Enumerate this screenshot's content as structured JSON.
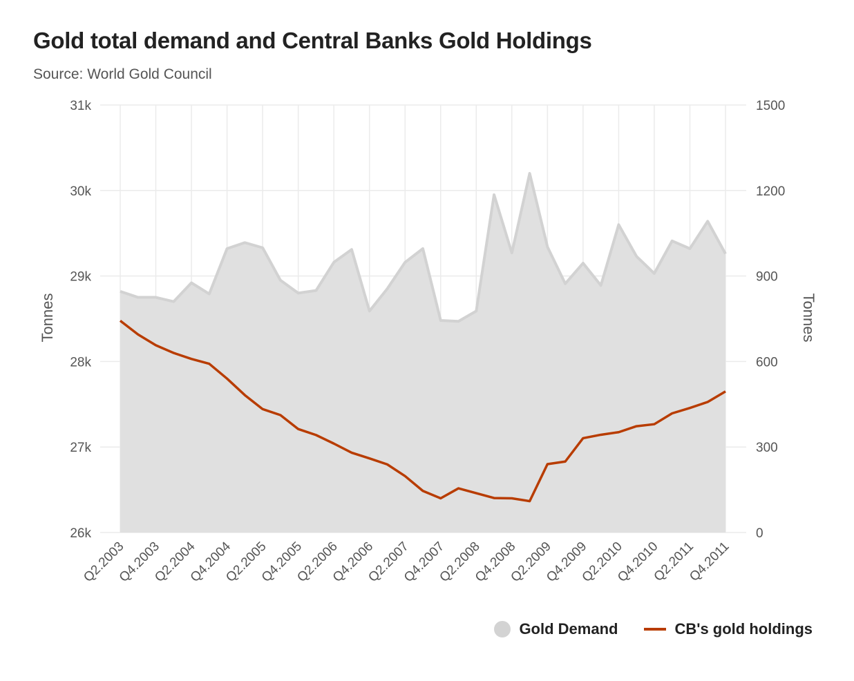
{
  "header": {
    "title": "Gold total demand and Central Banks Gold Holdings",
    "subtitle": "Source: World Gold Council"
  },
  "legend": {
    "demand_label": "Gold Demand",
    "holdings_label": "CB's gold holdings"
  },
  "colors": {
    "demand_fill": "#e0e0e0",
    "demand_stroke": "#d2d2d2",
    "holdings_line": "#b83c00",
    "grid": "#ebebeb"
  },
  "chart_data": {
    "type": "line",
    "title": "Gold total demand and Central Banks Gold Holdings",
    "subtitle": "Source: World Gold Council",
    "x": [
      "Q2.2003",
      "Q3.2003",
      "Q4.2003",
      "Q1.2004",
      "Q2.2004",
      "Q3.2004",
      "Q4.2004",
      "Q1.2005",
      "Q2.2005",
      "Q3.2005",
      "Q4.2005",
      "Q1.2006",
      "Q2.2006",
      "Q3.2006",
      "Q4.2006",
      "Q1.2007",
      "Q2.2007",
      "Q3.2007",
      "Q4.2007",
      "Q1.2008",
      "Q2.2008",
      "Q3.2008",
      "Q4.2008",
      "Q1.2009",
      "Q2.2009",
      "Q3.2009",
      "Q4.2009",
      "Q1.2010",
      "Q2.2010",
      "Q3.2010",
      "Q4.2010",
      "Q1.2011",
      "Q2.2011",
      "Q3.2011",
      "Q4.2011"
    ],
    "x_tick_labels": [
      "Q2.2003",
      "Q4.2003",
      "Q2.2004",
      "Q4.2004",
      "Q2.2005",
      "Q4.2005",
      "Q2.2006",
      "Q4.2006",
      "Q2.2007",
      "Q4.2007",
      "Q2.2008",
      "Q4.2008",
      "Q2.2009",
      "Q4.2009",
      "Q2.2010",
      "Q4.2010",
      "Q2.2011",
      "Q4.2011"
    ],
    "y_left": {
      "label": "Tonnes",
      "range": [
        26000,
        31000
      ],
      "ticks": [
        26000,
        27000,
        28000,
        29000,
        30000,
        31000
      ],
      "tick_labels": [
        "26k",
        "27k",
        "28k",
        "29k",
        "30k",
        "31k"
      ]
    },
    "y_right": {
      "label": "Tonnes",
      "range": [
        0,
        1500
      ],
      "ticks": [
        0,
        300,
        600,
        900,
        1200,
        1500
      ],
      "tick_labels": [
        "0",
        "300",
        "600",
        "900",
        "1200",
        "1500"
      ]
    },
    "series": [
      {
        "name": "Gold Demand",
        "type": "area",
        "axis": "left",
        "values": [
          28820,
          28750,
          28750,
          28700,
          28920,
          28790,
          29320,
          29390,
          29330,
          28950,
          28800,
          28830,
          29160,
          29310,
          28590,
          28850,
          29160,
          29320,
          28480,
          28470,
          28590,
          29950,
          29270,
          30200,
          29340,
          28910,
          29150,
          28890,
          29600,
          29230,
          29030,
          29410,
          29320,
          29640,
          29260
        ]
      },
      {
        "name": "CB's gold holdings",
        "type": "line",
        "axis": "right",
        "values": [
          743,
          695,
          657,
          630,
          609,
          592,
          540,
          482,
          433,
          412,
          363,
          342,
          312,
          280,
          260,
          239,
          198,
          146,
          120,
          155,
          138,
          121,
          120,
          110,
          240,
          249,
          331,
          343,
          352,
          373,
          380,
          418,
          437,
          458,
          495
        ]
      }
    ],
    "grid": true,
    "legend_position": "bottom-right"
  }
}
